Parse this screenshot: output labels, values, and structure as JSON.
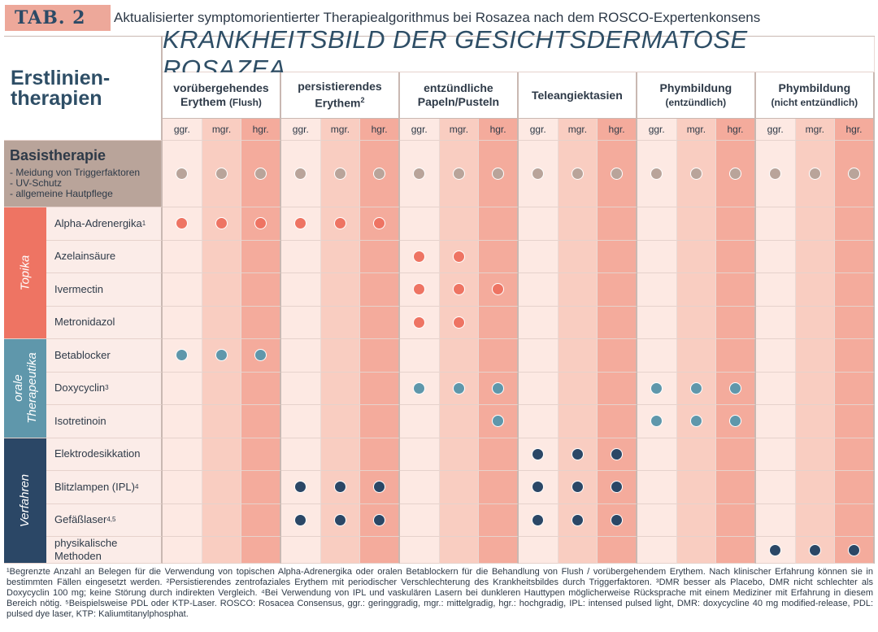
{
  "header": {
    "tab_label": "TAB. 2",
    "title": "Aktualisierter symptomorientierter Therapiealgorithmus bei Rosazea nach dem ROSCO-Expertenkonsens"
  },
  "corner_label": "Erstlinien-therapien",
  "main_title": "KRANKHEITSBILD DER GESICHTSDERMATOSE ROSAZEA",
  "groups": [
    {
      "label": "vorübergehendes Erythem",
      "sub": "(Flush)"
    },
    {
      "label": "persistierendes Erythem",
      "sup": "2"
    },
    {
      "label": "entzündliche Papeln/Pusteln"
    },
    {
      "label": "Teleangiektasien"
    },
    {
      "label": "Phymbildung",
      "sub": "(entzündlich)"
    },
    {
      "label": "Phymbildung",
      "sub": "(nicht entzündlich)"
    }
  ],
  "severity_labels": [
    "ggr.",
    "mgr.",
    "hgr."
  ],
  "basis": {
    "title": "Basistherapie",
    "items": [
      "- Meidung von Triggerfaktoren",
      "- UV-Schutz",
      "- allgemeine Hautpflege"
    ]
  },
  "categories": [
    {
      "label": "Topika",
      "color": "#ee7463"
    },
    {
      "label": "orale Therapeutika",
      "color": "#5f97ab"
    },
    {
      "label": "Verfahren",
      "color": "#2b4766"
    }
  ],
  "rows": [
    {
      "name": "Alpha-Adrenergika",
      "sup": "1",
      "category": 0,
      "dots": [
        0,
        1,
        2,
        3,
        4,
        5
      ]
    },
    {
      "name": "Azelainsäure",
      "category": 0,
      "dots": [
        6,
        7
      ]
    },
    {
      "name": "Ivermectin",
      "category": 0,
      "dots": [
        6,
        7,
        8
      ]
    },
    {
      "name": "Metronidazol",
      "category": 0,
      "dots": [
        6,
        7
      ]
    },
    {
      "name": "Betablocker",
      "category": 1,
      "dots": [
        0,
        1,
        2
      ]
    },
    {
      "name": "Doxycyclin",
      "sup": "3",
      "category": 1,
      "dots": [
        6,
        7,
        8,
        12,
        13,
        14
      ]
    },
    {
      "name": "Isotretinoin",
      "category": 1,
      "dots": [
        8,
        12,
        13,
        14
      ]
    },
    {
      "name": "Elektrodesikkation",
      "category": 2,
      "dots": [
        9,
        10,
        11
      ]
    },
    {
      "name": "Blitzlampen (IPL)",
      "sup": "4",
      "category": 2,
      "dots": [
        3,
        4,
        5,
        9,
        10,
        11
      ]
    },
    {
      "name": "Gefäßlaser",
      "sup": "4,5",
      "category": 2,
      "dots": [
        3,
        4,
        5,
        9,
        10,
        11
      ]
    },
    {
      "name": "physikalische Methoden",
      "category": 2,
      "dots": [
        15,
        16,
        17
      ]
    }
  ],
  "dot_colors": {
    "basis": "#b9a49a",
    "topika": "#ee7463",
    "oral": "#5f97ab",
    "verfahren": "#2b4766"
  },
  "footnote": "¹Begrenzte Anzahl an Belegen für die Verwendung von topischen Alpha-Adrenergika oder oralen Betablockern für die Behandlung von Flush / vorübergehendem Erythem. Nach klinischer Erfahrung können sie in bestimmten Fällen eingesetzt werden. ²Persistierendes zentrofaziales Erythem mit periodischer Verschlechterung des Krankheitsbildes durch Triggerfaktoren. ³DMR besser als Placebo, DMR nicht schlechter als Doxycyclin 100 mg; keine Störung durch indirekten Vergleich. ⁴Bei Verwendung von IPL und vaskulären Lasern bei dunkleren Hauttypen möglicherweise Rücksprache mit einem Mediziner mit Erfahrung in diesem Bereich nötig. ⁵Beispielsweise PDL oder KTP-Laser. ROSCO: Rosacea Consensus, ggr.: geringgradig, mgr.: mittelgradig, hgr.: hochgradig, IPL: intensed pulsed light, DMR: doxycycline 40 mg modified-release, PDL: pulsed dye laser, KTP: Kaliumtitanylphosphat."
}
